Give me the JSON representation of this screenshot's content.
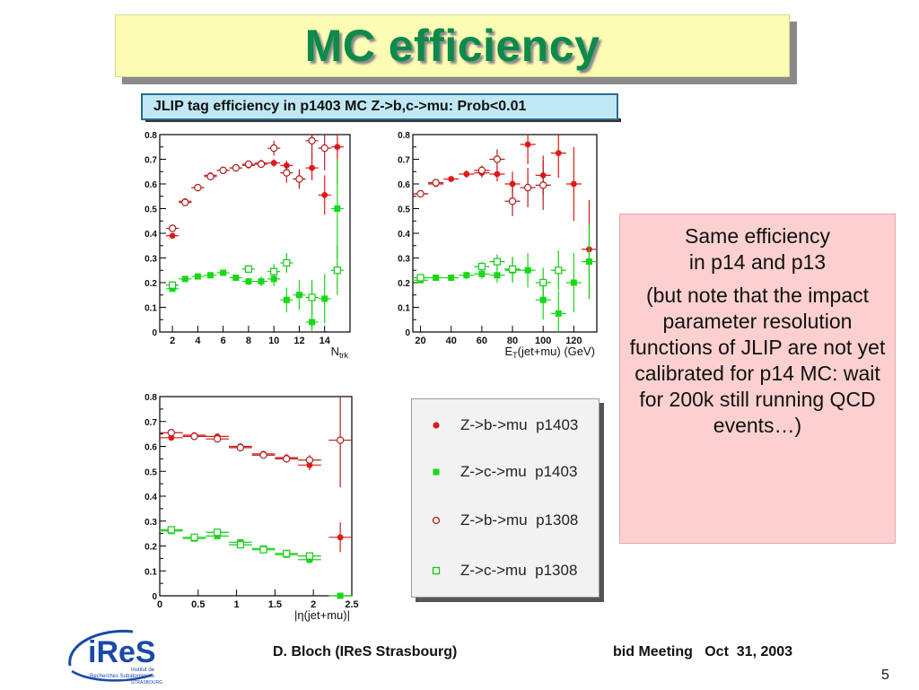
{
  "slide": {
    "title": "MC efficiency",
    "plot_title": "JLIP tag efficiency in p1403 MC Z->b,c->mu: Prob<0.01",
    "note": {
      "line1": "Same efficiency",
      "line2": "in p14 and p13",
      "paragraph": "(but note that the impact parameter resolution functions of JLIP are not yet calibrated for p14 MC: wait for 200k still running QCD events…)"
    },
    "footer": {
      "author": "D. Bloch (IReS Strasbourg)",
      "meeting": "bid Meeting   Oct  31, 2003",
      "page": "5"
    },
    "logo": {
      "name": "iReS",
      "line1": "Institut de",
      "line2": "Recherches Subatomiques",
      "line3": "STRASBOURG"
    },
    "legend": [
      {
        "label": "Z->b->mu  p1403",
        "marker": "filled-circle",
        "color": "#e01818"
      },
      {
        "label": "Z->c->mu  p1403",
        "marker": "filled-square",
        "color": "#18d818"
      },
      {
        "label": "Z->b->mu  p1308",
        "marker": "open-circle",
        "color": "#b02020"
      },
      {
        "label": "Z->c->mu  p1308",
        "marker": "open-square",
        "color": "#18c818"
      }
    ]
  },
  "colors": {
    "b_p1403": "#e01818",
    "c_p1403": "#18d818",
    "b_p1308": "#b02020",
    "c_p1308": "#18c818",
    "title_green": "#0c8a4a",
    "title_bg": "#fcfcb4",
    "note_bg": "#fdd0d0",
    "plot_title_bg": "#bfe8f4"
  },
  "chart_data": [
    {
      "type": "scatter",
      "xlabel_main": "N",
      "xlabel_sub": "trk",
      "xlim": [
        1,
        16
      ],
      "ylim": [
        0,
        0.8
      ],
      "xticks": [
        2,
        4,
        6,
        8,
        10,
        12,
        14
      ],
      "yticks": [
        0,
        0.1,
        0.2,
        0.3,
        0.4,
        0.5,
        0.6,
        0.7,
        0.8
      ],
      "ytick_labels": [
        "0",
        "0.1",
        "0.2",
        "0.3",
        "0.4",
        "0.5",
        "0.6",
        "0.7",
        "0.8"
      ],
      "xtick_labels": [
        "2",
        "4",
        "6",
        "8",
        "10",
        "12",
        "14"
      ],
      "series": [
        {
          "key": "b_p1403",
          "x": [
            2,
            3,
            4,
            5,
            6,
            7,
            8,
            9,
            10,
            11,
            12,
            13,
            14,
            15
          ],
          "y": [
            0.39,
            0.53,
            0.585,
            0.635,
            0.655,
            0.665,
            0.675,
            0.685,
            0.685,
            0.675,
            0.62,
            0.665,
            0.555,
            0.75
          ],
          "yerr": [
            0.01,
            0.01,
            0.01,
            0.01,
            0.01,
            0.01,
            0.01,
            0.012,
            0.015,
            0.02,
            0.03,
            0.05,
            0.08,
            0.15
          ]
        },
        {
          "key": "b_p1308",
          "x": [
            2,
            3,
            4,
            5,
            6,
            7,
            8,
            9,
            10,
            11,
            12,
            13,
            14
          ],
          "y": [
            0.42,
            0.525,
            0.585,
            0.63,
            0.655,
            0.665,
            0.68,
            0.68,
            0.745,
            0.645,
            0.62,
            0.775,
            0.745
          ],
          "yerr": [
            0.01,
            0.01,
            0.01,
            0.01,
            0.01,
            0.01,
            0.012,
            0.015,
            0.03,
            0.04,
            0.04,
            0.07,
            0.09
          ]
        },
        {
          "key": "c_p1403",
          "x": [
            2,
            3,
            4,
            5,
            6,
            7,
            8,
            9,
            10,
            11,
            12,
            13,
            14,
            15
          ],
          "y": [
            0.175,
            0.215,
            0.225,
            0.23,
            0.24,
            0.22,
            0.205,
            0.205,
            0.215,
            0.13,
            0.15,
            0.04,
            0.135,
            0.5
          ],
          "yerr": [
            0.01,
            0.01,
            0.01,
            0.01,
            0.01,
            0.01,
            0.015,
            0.02,
            0.03,
            0.05,
            0.06,
            0.07,
            0.1,
            0.2
          ]
        },
        {
          "key": "c_p1308",
          "x": [
            2,
            8,
            10,
            11,
            13,
            15
          ],
          "y": [
            0.19,
            0.255,
            0.245,
            0.28,
            0.14,
            0.25
          ],
          "yerr": [
            0.01,
            0.015,
            0.03,
            0.04,
            0.07,
            0.1
          ]
        }
      ]
    },
    {
      "type": "scatter",
      "xlabel_main": "E",
      "xlabel_sub": "T",
      "xlabel_rest": "(jet+mu) (GeV)",
      "xlim": [
        15,
        135
      ],
      "ylim": [
        0,
        0.8
      ],
      "xticks": [
        20,
        40,
        60,
        80,
        100,
        120
      ],
      "xtick_labels": [
        "20",
        "40",
        "60",
        "80",
        "100",
        "120"
      ],
      "yticks": [
        0,
        0.1,
        0.2,
        0.3,
        0.4,
        0.5,
        0.6,
        0.7,
        0.8
      ],
      "ytick_labels": [
        "0",
        "0.1",
        "0.2",
        "0.3",
        "0.4",
        "0.5",
        "0.6",
        "0.7",
        "0.8"
      ],
      "series": [
        {
          "key": "b_p1403",
          "x": [
            20,
            30,
            40,
            50,
            60,
            70,
            80,
            90,
            100,
            110,
            120,
            130
          ],
          "y": [
            0.56,
            0.6,
            0.62,
            0.64,
            0.645,
            0.64,
            0.6,
            0.76,
            0.635,
            0.725,
            0.6,
            0.335
          ],
          "xerr": [
            5,
            5,
            5,
            5,
            5,
            5,
            5,
            5,
            5,
            5,
            5,
            5
          ],
          "yerr": [
            0.01,
            0.01,
            0.01,
            0.015,
            0.02,
            0.03,
            0.05,
            0.08,
            0.08,
            0.1,
            0.15,
            0.2
          ]
        },
        {
          "key": "b_p1308",
          "x": [
            20,
            30,
            60,
            70,
            80,
            90,
            100
          ],
          "y": [
            0.56,
            0.605,
            0.655,
            0.7,
            0.53,
            0.585,
            0.595
          ],
          "xerr": [
            5,
            5,
            5,
            5,
            5,
            5,
            5
          ],
          "yerr": [
            0.01,
            0.01,
            0.02,
            0.04,
            0.06,
            0.08,
            0.1
          ]
        },
        {
          "key": "c_p1403",
          "x": [
            20,
            30,
            40,
            50,
            60,
            70,
            80,
            90,
            100,
            110,
            120,
            130
          ],
          "y": [
            0.21,
            0.22,
            0.22,
            0.23,
            0.235,
            0.23,
            0.25,
            0.25,
            0.13,
            0.075,
            0.2,
            0.285
          ],
          "xerr": [
            5,
            5,
            5,
            5,
            5,
            5,
            5,
            5,
            5,
            5,
            5,
            5
          ],
          "yerr": [
            0.01,
            0.01,
            0.01,
            0.015,
            0.02,
            0.03,
            0.05,
            0.07,
            0.08,
            0.09,
            0.12,
            0.15
          ]
        },
        {
          "key": "c_p1308",
          "x": [
            20,
            60,
            70,
            80,
            100,
            110
          ],
          "y": [
            0.22,
            0.265,
            0.285,
            0.255,
            0.2,
            0.25
          ],
          "xerr": [
            5,
            5,
            5,
            5,
            5,
            5
          ],
          "yerr": [
            0.01,
            0.02,
            0.03,
            0.05,
            0.06,
            0.08
          ]
        }
      ]
    },
    {
      "type": "scatter",
      "xlabel_main": "|η(jet+mu)|",
      "xlim": [
        0,
        2.5
      ],
      "ylim": [
        0,
        0.8
      ],
      "xticks": [
        0,
        0.5,
        1,
        1.5,
        2,
        2.5
      ],
      "xtick_labels": [
        "0",
        "0.5",
        "1",
        "1.5",
        "2",
        "2.5"
      ],
      "yticks": [
        0,
        0.1,
        0.2,
        0.3,
        0.4,
        0.5,
        0.6,
        0.7,
        0.8
      ],
      "ytick_labels": [
        "0",
        "0.1",
        "0.2",
        "0.3",
        "0.4",
        "0.5",
        "0.6",
        "0.7",
        "0.8"
      ],
      "series": [
        {
          "key": "b_p1403",
          "x": [
            0.15,
            0.45,
            0.75,
            1.05,
            1.35,
            1.65,
            1.95,
            2.35
          ],
          "y": [
            0.635,
            0.645,
            0.64,
            0.6,
            0.57,
            0.555,
            0.525,
            0.235
          ],
          "xerr": [
            0.15,
            0.15,
            0.15,
            0.15,
            0.15,
            0.15,
            0.15,
            0.15
          ],
          "yerr": [
            0.01,
            0.01,
            0.01,
            0.01,
            0.01,
            0.015,
            0.02,
            0.06
          ]
        },
        {
          "key": "b_p1308",
          "x": [
            0.15,
            0.45,
            0.75,
            1.05,
            1.35,
            1.65,
            1.95,
            2.35
          ],
          "y": [
            0.655,
            0.64,
            0.63,
            0.595,
            0.565,
            0.55,
            0.545,
            0.625
          ],
          "xerr": [
            0.15,
            0.15,
            0.15,
            0.15,
            0.15,
            0.15,
            0.15,
            0.15
          ],
          "yerr": [
            0.01,
            0.01,
            0.01,
            0.01,
            0.01,
            0.015,
            0.02,
            0.19
          ]
        },
        {
          "key": "c_p1403",
          "x": [
            0.15,
            0.45,
            0.75,
            1.05,
            1.35,
            1.65,
            1.95,
            2.35
          ],
          "y": [
            0.26,
            0.23,
            0.24,
            0.215,
            0.19,
            0.165,
            0.145,
            0.0
          ],
          "xerr": [
            0.15,
            0.15,
            0.15,
            0.15,
            0.15,
            0.15,
            0.15,
            0.15
          ],
          "yerr": [
            0.01,
            0.01,
            0.01,
            0.01,
            0.01,
            0.012,
            0.015,
            0.0
          ]
        },
        {
          "key": "c_p1308",
          "x": [
            0.15,
            0.45,
            0.75,
            1.05,
            1.35,
            1.65,
            1.95
          ],
          "y": [
            0.265,
            0.235,
            0.255,
            0.205,
            0.185,
            0.17,
            0.16
          ],
          "xerr": [
            0.15,
            0.15,
            0.15,
            0.15,
            0.15,
            0.15,
            0.15
          ],
          "yerr": [
            0.01,
            0.01,
            0.01,
            0.01,
            0.01,
            0.012,
            0.015
          ]
        }
      ]
    }
  ]
}
